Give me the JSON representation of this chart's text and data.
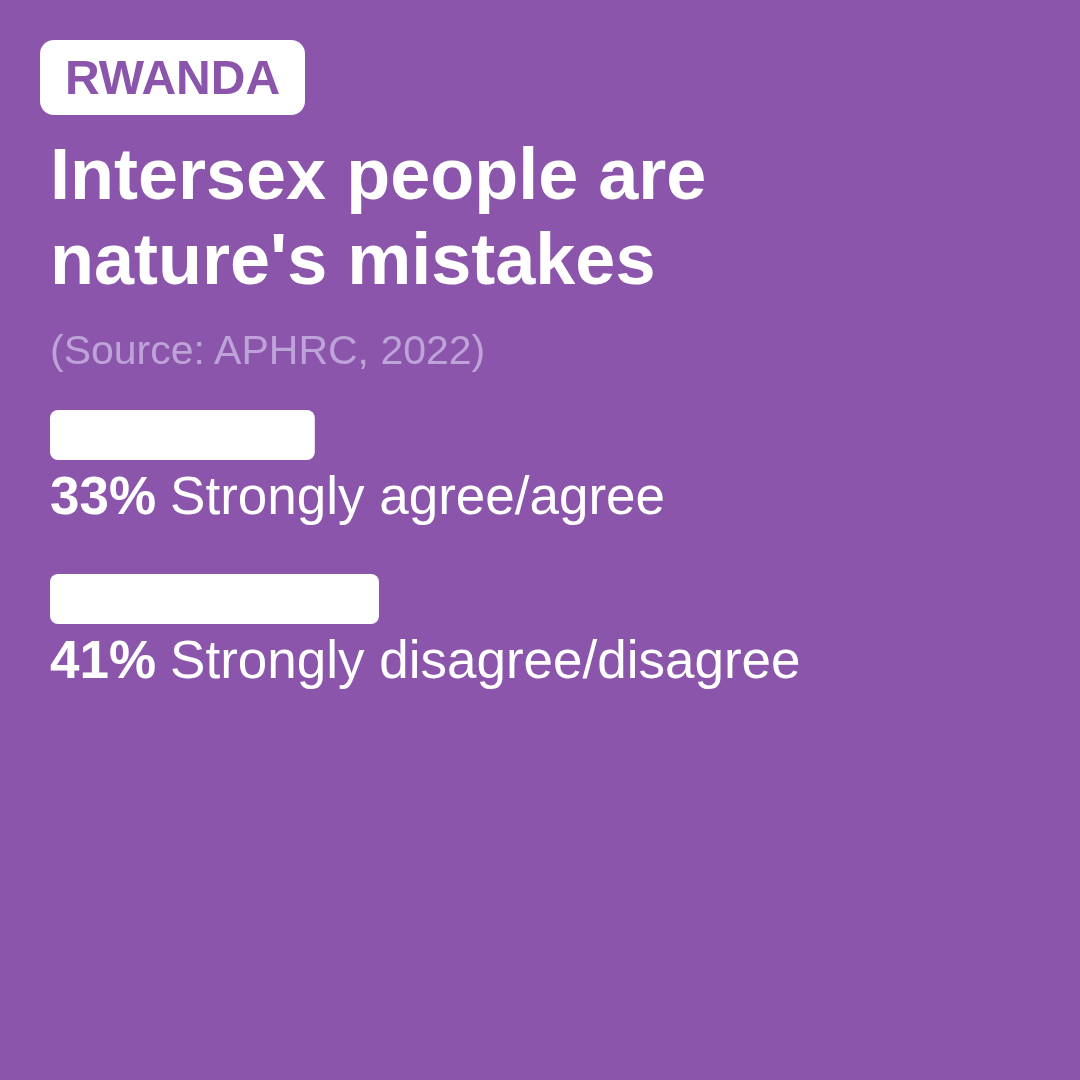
{
  "chart_data": {
    "type": "bar",
    "orientation": "horizontal",
    "title": "Intersex people are nature's mistakes",
    "annotations": [
      "RWANDA",
      "(Source: APHRC, 2022)"
    ],
    "categories": [
      "Strongly agree/agree",
      "Strongly disagree/disagree"
    ],
    "values": [
      33,
      41
    ],
    "color": "#ffffff",
    "value_labels": [
      "33%",
      "41%"
    ],
    "tick_labels": false
  }
}
